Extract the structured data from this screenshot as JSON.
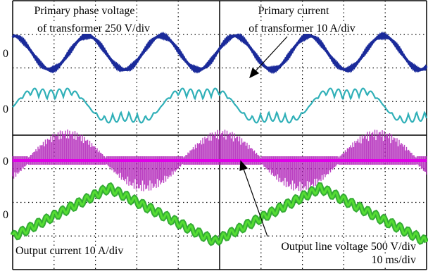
{
  "labels": {
    "ch1_line1": "Primary phase voltage",
    "ch1_line2": "of transformer 250 V/div",
    "ch2_line1": "Primary current",
    "ch2_line2": "of transformer 10 A/div",
    "ch4": "Output current 10 A/div",
    "ch3": "Output line voltage 500 V/div",
    "timebase": "10 ms/div"
  },
  "zero_markers": [
    "0",
    "0",
    "0",
    "0"
  ]
}
